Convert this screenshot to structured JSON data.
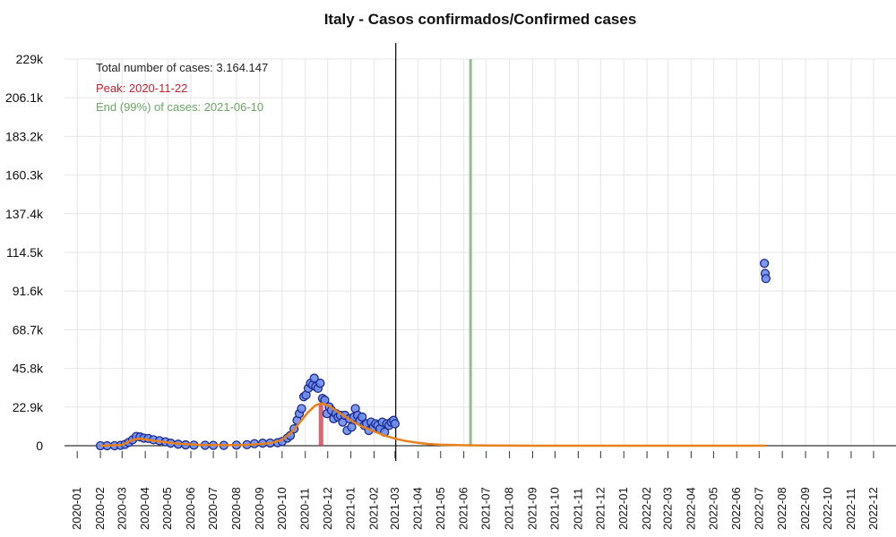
{
  "chart_data": {
    "type": "scatter",
    "title": "Italy - Casos confirmados/Confirmed cases",
    "xlabel": "",
    "ylabel": "",
    "x_range": [
      "2019-12-15",
      "2022-12-31"
    ],
    "ylim": [
      0,
      229000
    ],
    "yticks": [
      {
        "value": 0,
        "label": "0"
      },
      {
        "value": 22900,
        "label": "22.9k"
      },
      {
        "value": 45800,
        "label": "45.8k"
      },
      {
        "value": 68700,
        "label": "68.7k"
      },
      {
        "value": 91600,
        "label": "91.6k"
      },
      {
        "value": 114500,
        "label": "114.5k"
      },
      {
        "value": 137400,
        "label": "137.4k"
      },
      {
        "value": 160300,
        "label": "160.3k"
      },
      {
        "value": 183200,
        "label": "183.2k"
      },
      {
        "value": 206100,
        "label": "206.1k"
      },
      {
        "value": 229000,
        "label": "229k"
      }
    ],
    "xticks": [
      "2020-01",
      "2020-02",
      "2020-03",
      "2020-04",
      "2020-05",
      "2020-06",
      "2020-07",
      "2020-08",
      "2020-09",
      "2020-10",
      "2020-11",
      "2020-12",
      "2021-01",
      "2021-02",
      "2021-03",
      "2021-04",
      "2021-05",
      "2021-06",
      "2021-07",
      "2021-08",
      "2021-09",
      "2021-10",
      "2021-11",
      "2021-12",
      "2022-01",
      "2022-02",
      "2022-03",
      "2022-04",
      "2022-05",
      "2022-06",
      "2022-07",
      "2022-08",
      "2022-09",
      "2022-10",
      "2022-11",
      "2022-12"
    ],
    "grid": true,
    "annotations": {
      "total": "Total number of cases: 3.164.147",
      "peak": "Peak: 2020-11-22",
      "end": "End (99%) of cases: 2021-06-10"
    },
    "markers": {
      "current_date": "2021-03-02",
      "peak_date": "2020-11-22",
      "end_date": "2021-06-10"
    },
    "observed_series": {
      "name": "",
      "points": [
        [
          "2020-02-01",
          0
        ],
        [
          "2020-02-10",
          0
        ],
        [
          "2020-02-20",
          0
        ],
        [
          "2020-02-28",
          200
        ],
        [
          "2020-03-05",
          800
        ],
        [
          "2020-03-10",
          2000
        ],
        [
          "2020-03-15",
          3500
        ],
        [
          "2020-03-20",
          5500
        ],
        [
          "2020-03-25",
          5200
        ],
        [
          "2020-03-30",
          4500
        ],
        [
          "2020-04-05",
          4300
        ],
        [
          "2020-04-12",
          3500
        ],
        [
          "2020-04-20",
          3000
        ],
        [
          "2020-04-28",
          2300
        ],
        [
          "2020-05-05",
          1500
        ],
        [
          "2020-05-15",
          900
        ],
        [
          "2020-05-25",
          500
        ],
        [
          "2020-06-05",
          350
        ],
        [
          "2020-06-20",
          250
        ],
        [
          "2020-07-01",
          200
        ],
        [
          "2020-07-15",
          200
        ],
        [
          "2020-08-01",
          350
        ],
        [
          "2020-08-15",
          600
        ],
        [
          "2020-08-25",
          1200
        ],
        [
          "2020-09-05",
          1500
        ],
        [
          "2020-09-15",
          1600
        ],
        [
          "2020-09-25",
          1800
        ],
        [
          "2020-10-01",
          2500
        ],
        [
          "2020-10-08",
          4500
        ],
        [
          "2020-10-12",
          6000
        ],
        [
          "2020-10-17",
          10000
        ],
        [
          "2020-10-21",
          15000
        ],
        [
          "2020-10-24",
          19000
        ],
        [
          "2020-10-27",
          22000
        ],
        [
          "2020-10-30",
          29000
        ],
        [
          "2020-11-02",
          30000
        ],
        [
          "2020-11-05",
          34000
        ],
        [
          "2020-11-08",
          37000
        ],
        [
          "2020-11-11",
          36000
        ],
        [
          "2020-11-13",
          40000
        ],
        [
          "2020-11-15",
          35000
        ],
        [
          "2020-11-18",
          34000
        ],
        [
          "2020-11-21",
          37000
        ],
        [
          "2020-11-24",
          28000
        ],
        [
          "2020-11-27",
          27000
        ],
        [
          "2020-11-30",
          19000
        ],
        [
          "2020-12-03",
          23000
        ],
        [
          "2020-12-06",
          21000
        ],
        [
          "2020-12-09",
          16000
        ],
        [
          "2020-12-12",
          19000
        ],
        [
          "2020-12-15",
          17000
        ],
        [
          "2020-12-18",
          18000
        ],
        [
          "2020-12-21",
          14000
        ],
        [
          "2020-12-24",
          18000
        ],
        [
          "2020-12-27",
          9000
        ],
        [
          "2020-12-30",
          16000
        ],
        [
          "2021-01-02",
          11000
        ],
        [
          "2021-01-05",
          17000
        ],
        [
          "2021-01-07",
          22000
        ],
        [
          "2021-01-10",
          18000
        ],
        [
          "2021-01-13",
          15000
        ],
        [
          "2021-01-16",
          17000
        ],
        [
          "2021-01-19",
          12000
        ],
        [
          "2021-01-22",
          13000
        ],
        [
          "2021-01-25",
          9000
        ],
        [
          "2021-01-28",
          14000
        ],
        [
          "2021-01-31",
          11000
        ],
        [
          "2021-02-03",
          13000
        ],
        [
          "2021-02-06",
          12000
        ],
        [
          "2021-02-09",
          10000
        ],
        [
          "2021-02-12",
          14000
        ],
        [
          "2021-02-15",
          8000
        ],
        [
          "2021-02-18",
          13000
        ],
        [
          "2021-02-21",
          12000
        ],
        [
          "2021-02-24",
          14000
        ],
        [
          "2021-02-27",
          15000
        ],
        [
          "2021-03-01",
          13000
        ],
        [
          "2022-07-08",
          108000
        ],
        [
          "2022-07-09",
          102000
        ],
        [
          "2022-07-10",
          99000
        ]
      ]
    },
    "fitted_series": {
      "name": "",
      "points": [
        [
          "2020-02-01",
          0
        ],
        [
          "2020-03-01",
          500
        ],
        [
          "2020-03-15",
          3500
        ],
        [
          "2020-03-25",
          4200
        ],
        [
          "2020-04-15",
          2800
        ],
        [
          "2020-05-15",
          1200
        ],
        [
          "2020-06-15",
          500
        ],
        [
          "2020-07-15",
          300
        ],
        [
          "2020-08-15",
          500
        ],
        [
          "2020-09-15",
          1500
        ],
        [
          "2020-10-01",
          3500
        ],
        [
          "2020-10-15",
          8500
        ],
        [
          "2020-10-25",
          14000
        ],
        [
          "2020-11-05",
          20000
        ],
        [
          "2020-11-15",
          24000
        ],
        [
          "2020-11-22",
          25000
        ],
        [
          "2020-12-01",
          24000
        ],
        [
          "2020-12-15",
          20000
        ],
        [
          "2021-01-01",
          15000
        ],
        [
          "2021-01-15",
          11500
        ],
        [
          "2021-02-01",
          8500
        ],
        [
          "2021-02-15",
          6000
        ],
        [
          "2021-03-01",
          4200
        ],
        [
          "2021-03-15",
          2800
        ],
        [
          "2021-04-01",
          1700
        ],
        [
          "2021-04-15",
          1000
        ],
        [
          "2021-05-01",
          600
        ],
        [
          "2021-06-01",
          250
        ],
        [
          "2021-07-01",
          100
        ],
        [
          "2021-09-01",
          20
        ],
        [
          "2022-01-01",
          0
        ],
        [
          "2022-07-10",
          0
        ]
      ]
    },
    "colors": {
      "points_fill": "#6e8ef0",
      "points_stroke": "#1c2a8c",
      "fit_line": "#e8801c",
      "peak_bar": "#cc3344",
      "end_line": "#8fbf8a",
      "current_line": "#000000",
      "grid": "#e6e6e6",
      "total_text": "#222222",
      "peak_text": "#cc1f2f",
      "end_text": "#6aa864"
    }
  }
}
